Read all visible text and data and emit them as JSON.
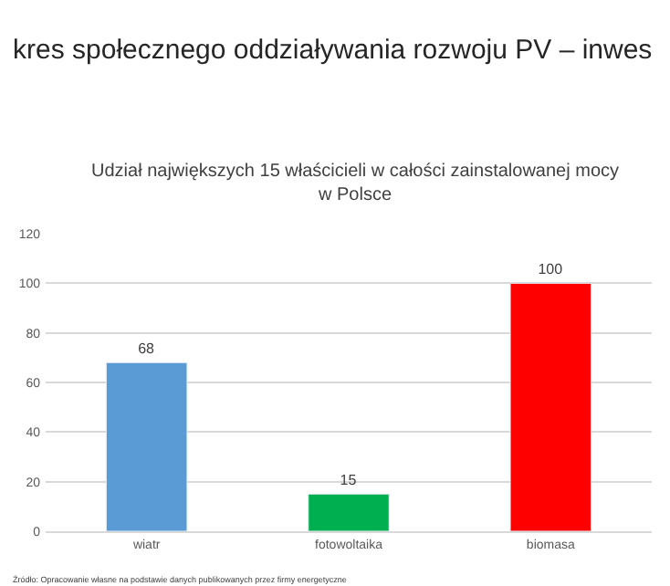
{
  "chart_data": {
    "type": "bar",
    "title": "kres społecznego oddziaływania rozwoju PV – inwes",
    "subtitle": "Udział największych 15 właścicieli w całości zainstalowanej mocy w Polsce",
    "categories": [
      "wiatr",
      "fotowoltaika",
      "biomasa"
    ],
    "values": [
      68,
      15,
      100
    ],
    "colors": [
      "#5b9bd5",
      "#00b050",
      "#ff0000"
    ],
    "ylim": [
      0,
      120
    ],
    "yticks": [
      0,
      20,
      40,
      60,
      80,
      100,
      120
    ],
    "grid": "y",
    "data_labels": true,
    "annotations": [
      "Źródło: Opracowanie własne na podstawie danych publikowanych przez firmy energetyczne"
    ]
  }
}
